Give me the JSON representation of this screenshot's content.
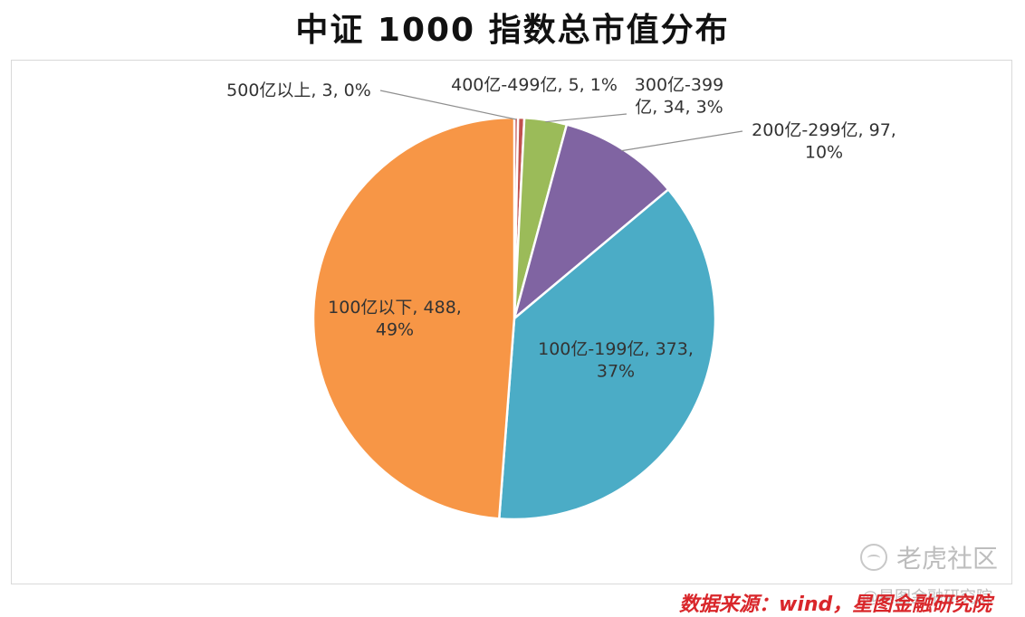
{
  "chart_data": {
    "type": "pie",
    "title": "中证 1000 指数总市值分布",
    "slices": [
      {
        "category": "500亿以上",
        "value": 3,
        "percent": "0%",
        "label": "500亿以上, 3, 0%",
        "color": "#C0504D"
      },
      {
        "category": "400亿-499亿",
        "value": 5,
        "percent": "1%",
        "label": "400亿-499亿, 5, 1%",
        "color": "#C0504D"
      },
      {
        "category": "300亿-399亿",
        "value": 34,
        "percent": "3%",
        "label_lines": [
          "300亿-399",
          "亿, 34, 3%"
        ],
        "color": "#9BBB59"
      },
      {
        "category": "200亿-299亿",
        "value": 97,
        "percent": "10%",
        "label_lines": [
          "200亿-299亿, 97,",
          "10%"
        ],
        "color": "#8064A2"
      },
      {
        "category": "100亿-199亿",
        "value": 373,
        "percent": "37%",
        "label_lines": [
          "100亿-199亿, 373,",
          "37%"
        ],
        "color": "#4BACC6"
      },
      {
        "category": "100亿以下",
        "value": 488,
        "percent": "49%",
        "label_lines": [
          "100亿以下, 488,",
          "49%"
        ],
        "color": "#F79646"
      }
    ]
  },
  "source_note": "数据来源：wind，星图金融研究院",
  "watermark": {
    "brand": "老虎社区",
    "author": "@星图金融研究院"
  }
}
